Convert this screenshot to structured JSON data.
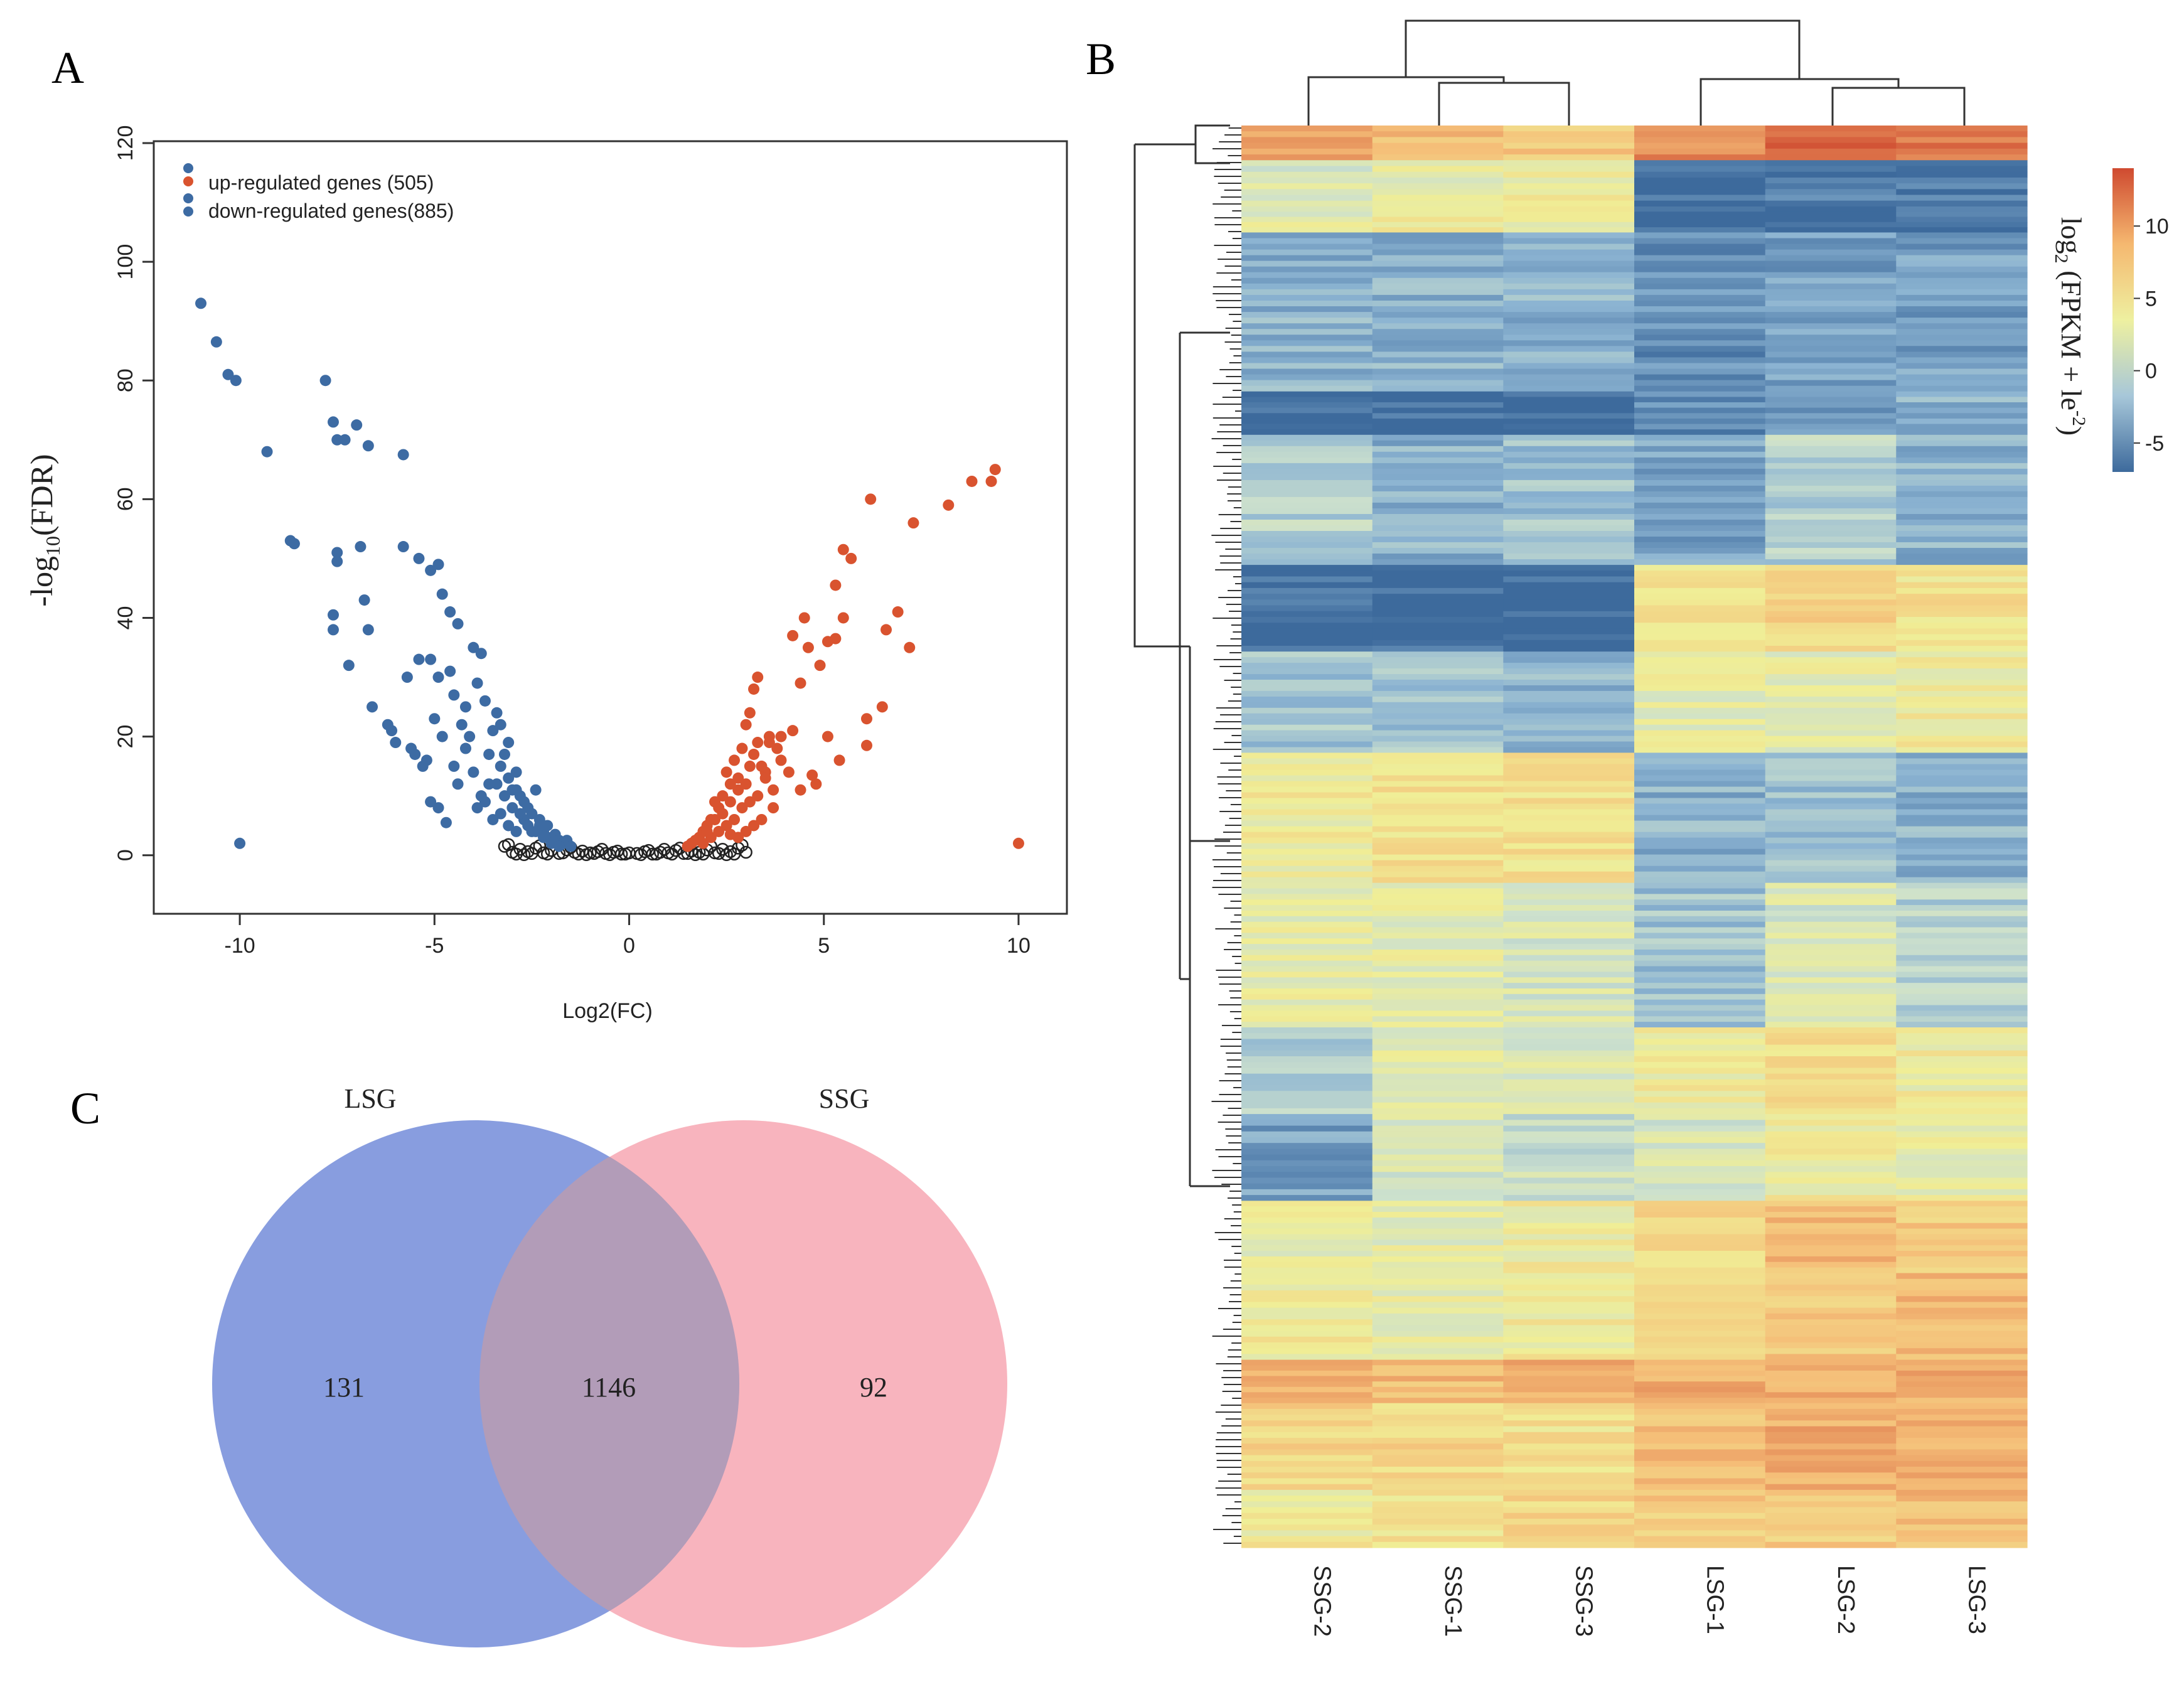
{
  "panels": {
    "a_label": "A",
    "b_label": "B",
    "c_label": "C"
  },
  "colors": {
    "up": "#d9532f",
    "down": "#3d6ba3",
    "ns": "#222222",
    "venn_left": "#6e87d8",
    "venn_right": "#f7a4b0"
  },
  "chart_data": [
    {
      "type": "scatter",
      "name": "volcano",
      "xlabel": "Log2(FC)",
      "ylabel_main": "-log",
      "ylabel_sub": "10",
      "ylabel_tail": "(FDR)",
      "xlim": [
        -12,
        11
      ],
      "ylim": [
        -5,
        120
      ],
      "xticks": [
        "-10",
        "-5",
        "0",
        "5",
        "10"
      ],
      "xtick_values": [
        -10,
        -5,
        0,
        5,
        10
      ],
      "yticks": [
        "0",
        "20",
        "40",
        "60",
        "80",
        "100",
        "120"
      ],
      "ytick_values": [
        0,
        20,
        40,
        60,
        80,
        100,
        120
      ],
      "legend": [
        {
          "label": "up-regulated genes (505)",
          "series": "up"
        },
        {
          "label": "down-regulated genes(885)",
          "series": "down"
        }
      ],
      "series": {
        "down": [
          [
            -11,
            93
          ],
          [
            -10.6,
            86.5
          ],
          [
            -10.3,
            81
          ],
          [
            -10.1,
            80
          ],
          [
            -10,
            2
          ],
          [
            -9.3,
            68
          ],
          [
            -8.7,
            53
          ],
          [
            -8.6,
            52.5
          ],
          [
            -7.8,
            80
          ],
          [
            -7.6,
            73
          ],
          [
            -7.5,
            70
          ],
          [
            -7.3,
            70
          ],
          [
            -7,
            72.5
          ],
          [
            -6.7,
            69
          ],
          [
            -5.8,
            67.5
          ],
          [
            -7.5,
            51
          ],
          [
            -7.5,
            49.5
          ],
          [
            -7.6,
            40.5
          ],
          [
            -7.6,
            38
          ],
          [
            -7.2,
            32
          ],
          [
            -6.9,
            52
          ],
          [
            -6.8,
            43
          ],
          [
            -6.7,
            38
          ],
          [
            -6.6,
            25
          ],
          [
            -6.1,
            21
          ],
          [
            -6,
            19
          ],
          [
            -5.8,
            52
          ],
          [
            -5.4,
            50
          ],
          [
            -5.1,
            48
          ],
          [
            -4.9,
            49
          ],
          [
            -4.8,
            44
          ],
          [
            -4.6,
            41
          ],
          [
            -4.4,
            39
          ],
          [
            -4,
            35
          ],
          [
            -3.8,
            34
          ],
          [
            -5.7,
            30
          ],
          [
            -5.4,
            33
          ],
          [
            -5.1,
            33
          ],
          [
            -4.9,
            30
          ],
          [
            -5.6,
            18
          ],
          [
            -5.3,
            15
          ],
          [
            -5.1,
            9
          ],
          [
            -4.9,
            8
          ],
          [
            -4.7,
            5.5
          ],
          [
            -4.4,
            12
          ],
          [
            -4.1,
            20
          ],
          [
            -4,
            14
          ],
          [
            -3.8,
            10
          ],
          [
            -3.6,
            12
          ],
          [
            -3.4,
            24
          ],
          [
            -3.3,
            22
          ],
          [
            -3.2,
            17
          ],
          [
            -3.1,
            19
          ],
          [
            -3,
            8
          ],
          [
            -2.9,
            14
          ],
          [
            -2.8,
            10
          ],
          [
            -2.7,
            6
          ],
          [
            -2.6,
            8
          ],
          [
            -2.5,
            4
          ],
          [
            -2.4,
            11
          ],
          [
            -2.3,
            6
          ],
          [
            -2.2,
            4
          ],
          [
            -2.1,
            5
          ],
          [
            -2,
            3
          ],
          [
            -1.9,
            3.5
          ],
          [
            -1.8,
            2.5
          ],
          [
            -1.7,
            2
          ],
          [
            -1.6,
            2.5
          ],
          [
            -1.5,
            1.5
          ],
          [
            -4.5,
            27
          ],
          [
            -4.2,
            25
          ],
          [
            -3.9,
            29
          ],
          [
            -3.7,
            26
          ],
          [
            -3.5,
            21
          ],
          [
            -3.3,
            15
          ],
          [
            -3.1,
            13
          ],
          [
            -2.9,
            11
          ],
          [
            -2.7,
            9
          ],
          [
            -2.5,
            7
          ],
          [
            -2.3,
            5
          ],
          [
            -4.6,
            31
          ],
          [
            -4.3,
            22
          ],
          [
            -5.5,
            17
          ],
          [
            -5.2,
            16
          ],
          [
            -6.2,
            22
          ],
          [
            -3.6,
            17
          ],
          [
            -3.4,
            12
          ],
          [
            -3.2,
            10
          ],
          [
            -3,
            11
          ],
          [
            -2.8,
            7
          ],
          [
            -2.6,
            5
          ],
          [
            -2.4,
            4
          ],
          [
            -2.2,
            3
          ],
          [
            -2,
            2
          ],
          [
            -1.8,
            1.5
          ],
          [
            -5,
            23
          ],
          [
            -4.8,
            20
          ],
          [
            -4.5,
            15
          ],
          [
            -4.2,
            18
          ],
          [
            -3.9,
            8
          ],
          [
            -3.7,
            9
          ],
          [
            -3.5,
            6
          ],
          [
            -3.3,
            7
          ],
          [
            -3.1,
            5
          ],
          [
            -2.9,
            4
          ]
        ],
        "up": [
          [
            10,
            2
          ],
          [
            9.4,
            65
          ],
          [
            9.3,
            63
          ],
          [
            8.8,
            63
          ],
          [
            8.2,
            59
          ],
          [
            7.3,
            56
          ],
          [
            6.2,
            60
          ],
          [
            6.9,
            41
          ],
          [
            7.2,
            35
          ],
          [
            6.6,
            38
          ],
          [
            6.5,
            25
          ],
          [
            6.1,
            23
          ],
          [
            6.1,
            18.5
          ],
          [
            5.5,
            51.5
          ],
          [
            5.7,
            50
          ],
          [
            5.5,
            40
          ],
          [
            5.3,
            45.5
          ],
          [
            5.1,
            36
          ],
          [
            4.9,
            32
          ],
          [
            5.3,
            36.5
          ],
          [
            4.5,
            40
          ],
          [
            4.2,
            37
          ],
          [
            4.6,
            35
          ],
          [
            4.4,
            29
          ],
          [
            5.4,
            16
          ],
          [
            5.1,
            20
          ],
          [
            4.8,
            12
          ],
          [
            4.7,
            13.5
          ],
          [
            4.4,
            11
          ],
          [
            4.2,
            21
          ],
          [
            3.9,
            20
          ],
          [
            3.6,
            19
          ],
          [
            3.5,
            14
          ],
          [
            3.2,
            17
          ],
          [
            3.3,
            30
          ],
          [
            3.2,
            28
          ],
          [
            3.1,
            24
          ],
          [
            3,
            22
          ],
          [
            2.9,
            18
          ],
          [
            2.8,
            13
          ],
          [
            2.7,
            16
          ],
          [
            2.6,
            12
          ],
          [
            2.5,
            14
          ],
          [
            2.4,
            10
          ],
          [
            2.3,
            8
          ],
          [
            2.2,
            9
          ],
          [
            2.1,
            6
          ],
          [
            2,
            5
          ],
          [
            1.9,
            4
          ],
          [
            1.8,
            3
          ],
          [
            1.7,
            2.5
          ],
          [
            1.6,
            2
          ],
          [
            1.5,
            1.5
          ],
          [
            3.8,
            18
          ],
          [
            3.7,
            11
          ],
          [
            3.4,
            15
          ],
          [
            3.1,
            9
          ],
          [
            2.9,
            8
          ],
          [
            2.7,
            6
          ],
          [
            2.5,
            5
          ],
          [
            2.3,
            4
          ],
          [
            2.1,
            3
          ],
          [
            1.9,
            2
          ],
          [
            3.5,
            13
          ],
          [
            3.3,
            10
          ],
          [
            3,
            12
          ],
          [
            2.8,
            11
          ],
          [
            2.6,
            9
          ],
          [
            2.4,
            7
          ],
          [
            2.2,
            6
          ],
          [
            2,
            4
          ],
          [
            4.1,
            14
          ],
          [
            3.9,
            16
          ],
          [
            3.7,
            8
          ],
          [
            3.4,
            6
          ],
          [
            3.2,
            5
          ],
          [
            3,
            4
          ],
          [
            2.8,
            3
          ],
          [
            2.6,
            3.5
          ],
          [
            3.6,
            20
          ],
          [
            3.3,
            19
          ],
          [
            3.1,
            15
          ]
        ],
        "ns": [
          [
            -3.2,
            1.5
          ],
          [
            -3,
            0.5
          ],
          [
            -2.8,
            1
          ],
          [
            -2.6,
            0.6
          ],
          [
            -2.4,
            1.2
          ],
          [
            -2.2,
            0.4
          ],
          [
            -2,
            0.8
          ],
          [
            -1.8,
            0.3
          ],
          [
            -1.6,
            0.9
          ],
          [
            -1.4,
            0.5
          ],
          [
            -1.2,
            0.7
          ],
          [
            -1,
            0.4
          ],
          [
            -0.8,
            0.6
          ],
          [
            -0.6,
            0.3
          ],
          [
            -0.4,
            0.5
          ],
          [
            -0.2,
            0.2
          ],
          [
            0,
            0.4
          ],
          [
            0.2,
            0.3
          ],
          [
            0.4,
            0.6
          ],
          [
            0.6,
            0.2
          ],
          [
            0.8,
            0.5
          ],
          [
            1,
            0.4
          ],
          [
            1.2,
            0.8
          ],
          [
            1.4,
            0.3
          ],
          [
            1.6,
            0.7
          ],
          [
            1.8,
            0.5
          ],
          [
            2,
            0.9
          ],
          [
            2.2,
            0.4
          ],
          [
            2.4,
            1
          ],
          [
            2.6,
            0.6
          ],
          [
            2.8,
            1.2
          ],
          [
            3,
            0.5
          ],
          [
            -2.9,
            0.2
          ],
          [
            -2.5,
            0.3
          ],
          [
            -2.1,
            0.2
          ],
          [
            -1.7,
            0.4
          ],
          [
            -1.3,
            0.2
          ],
          [
            -0.9,
            0.3
          ],
          [
            -0.5,
            0.1
          ],
          [
            -0.1,
            0.2
          ],
          [
            0.3,
            0.1
          ],
          [
            0.7,
            0.2
          ],
          [
            1.1,
            0.2
          ],
          [
            1.5,
            0.3
          ],
          [
            1.9,
            0.2
          ],
          [
            2.3,
            0.3
          ],
          [
            2.7,
            0.2
          ],
          [
            -1.5,
            1.3
          ],
          [
            1.3,
            1.2
          ],
          [
            -0.7,
            1
          ],
          [
            0.9,
            1
          ],
          [
            -2.3,
            1.6
          ],
          [
            2.1,
            1.5
          ],
          [
            -3.1,
            1.8
          ],
          [
            2.9,
            1.7
          ],
          [
            -0.3,
            0.7
          ],
          [
            0.5,
            0.8
          ],
          [
            -1.1,
            0.1
          ],
          [
            1.7,
            0.1
          ],
          [
            -2.7,
            0.1
          ],
          [
            2.5,
            0.1
          ]
        ]
      }
    },
    {
      "type": "heatmap",
      "name": "expression-heatmap",
      "columns": [
        "SSG-2",
        "SSG-1",
        "SSG-3",
        "LSG-1",
        "LSG-2",
        "LSG-3"
      ],
      "legend_title_main": "log",
      "legend_title_sub": "2",
      "legend_title_tail": " (FPKM + le",
      "legend_title_sup": "-2",
      "legend_title_end": ")",
      "legend_ticks": [
        "10",
        "5",
        "0",
        "-5"
      ],
      "legend_tick_values": [
        10,
        5,
        0,
        -5
      ],
      "value_range": [
        -7,
        14
      ],
      "row_blocks": [
        {
          "rows": 24,
          "values": [
            9,
            7,
            6,
            10,
            12,
            11
          ]
        },
        {
          "rows": 32,
          "values": [
            1,
            2,
            3,
            -7,
            -6,
            -6
          ]
        },
        {
          "rows": 18,
          "values": [
            2,
            3,
            3,
            -7,
            -7,
            -7
          ]
        },
        {
          "rows": 110,
          "values": [
            -3,
            -3,
            -3,
            -5,
            -4,
            -4
          ]
        },
        {
          "rows": 30,
          "values": [
            -7,
            -7,
            -7,
            -5,
            -4,
            -3
          ]
        },
        {
          "rows": 90,
          "values": [
            -1,
            -3,
            -2,
            -4,
            -1,
            -3
          ]
        },
        {
          "rows": 60,
          "values": [
            -7,
            -7,
            -7,
            4,
            5,
            4
          ]
        },
        {
          "rows": 70,
          "values": [
            -2,
            -2,
            -3,
            2,
            2,
            3
          ]
        },
        {
          "rows": 90,
          "values": [
            3,
            4,
            4,
            -3,
            -2,
            -3
          ]
        },
        {
          "rows": 100,
          "values": [
            2,
            2,
            1,
            -2,
            1,
            -1
          ]
        },
        {
          "rows": 60,
          "values": [
            -1,
            2,
            1,
            3,
            4,
            3
          ]
        },
        {
          "rows": 60,
          "values": [
            -4,
            1,
            0,
            1,
            3,
            2
          ]
        },
        {
          "rows": 50,
          "values": [
            2,
            2,
            3,
            5,
            7,
            6
          ]
        },
        {
          "rows": 60,
          "values": [
            3,
            2,
            3,
            5,
            6,
            7
          ]
        },
        {
          "rows": 30,
          "values": [
            8,
            7,
            8,
            8,
            8,
            8
          ]
        },
        {
          "rows": 60,
          "values": [
            5,
            5,
            4,
            7,
            8,
            8
          ]
        },
        {
          "rows": 40,
          "values": [
            3,
            4,
            5,
            6,
            6,
            7
          ]
        }
      ]
    },
    {
      "type": "venn",
      "name": "venn",
      "sets": [
        {
          "name": "LSG",
          "only": "131"
        },
        {
          "name": "SSG",
          "only": "92"
        }
      ],
      "intersection": "1146"
    }
  ]
}
